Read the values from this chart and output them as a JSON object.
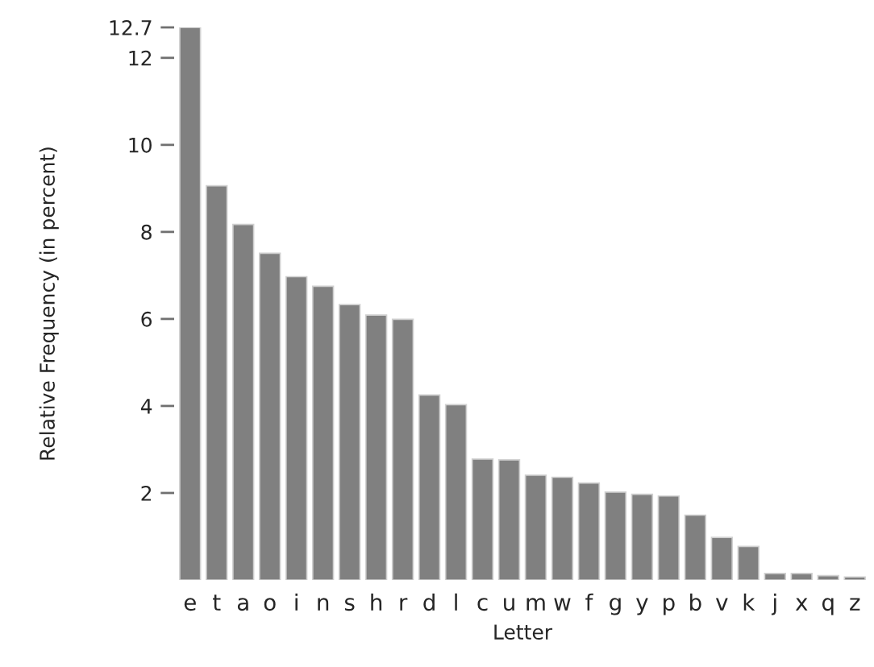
{
  "chart_data": {
    "type": "bar",
    "xlabel": "Letter",
    "ylabel": "Relative Frequency (in percent)",
    "categories": [
      "e",
      "t",
      "a",
      "o",
      "i",
      "n",
      "s",
      "h",
      "r",
      "d",
      "l",
      "c",
      "u",
      "m",
      "w",
      "f",
      "g",
      "y",
      "p",
      "b",
      "v",
      "k",
      "j",
      "x",
      "q",
      "z"
    ],
    "values": [
      12.7,
      9.06,
      8.17,
      7.51,
      6.97,
      6.75,
      6.33,
      6.09,
      5.99,
      4.25,
      4.03,
      2.78,
      2.76,
      2.41,
      2.36,
      2.23,
      2.02,
      1.97,
      1.93,
      1.49,
      0.98,
      0.77,
      0.15,
      0.15,
      0.1,
      0.07
    ],
    "color": "#808080",
    "ylim": [
      0,
      12.7
    ],
    "yticks": [
      2,
      4,
      6,
      8,
      10,
      12,
      12.7
    ],
    "grid": false
  }
}
